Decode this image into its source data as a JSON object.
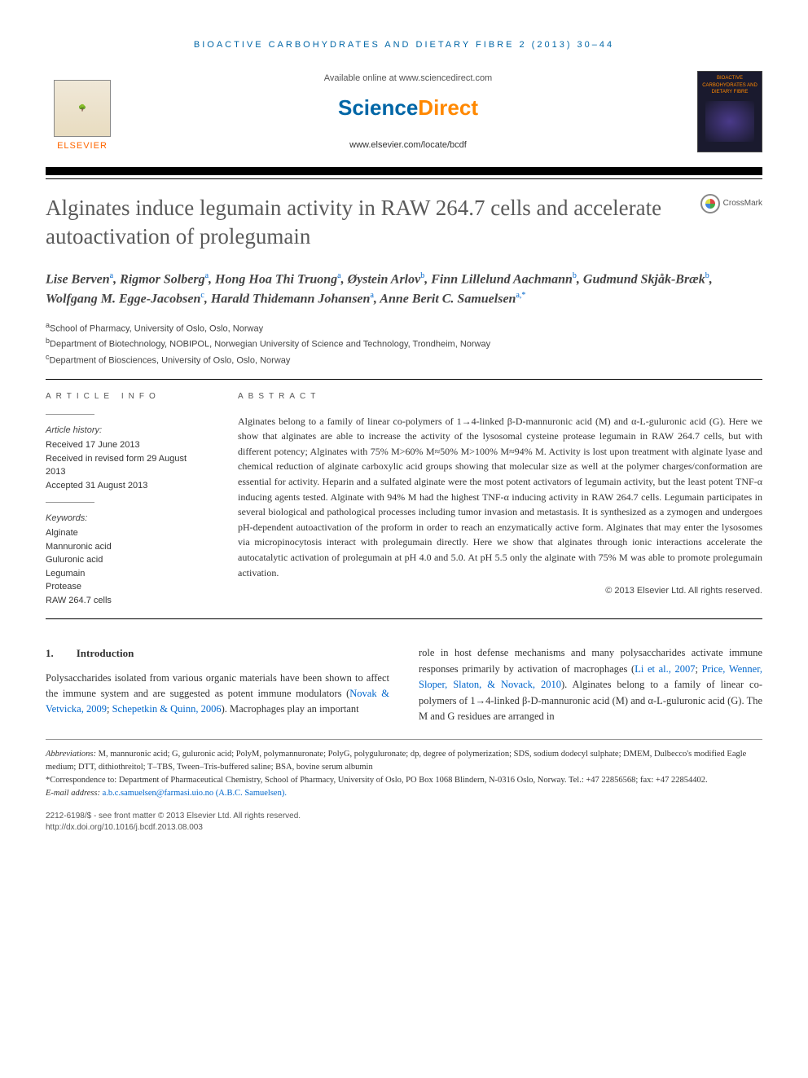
{
  "journal_header": "BIOACTIVE CARBOHYDRATES AND DIETARY FIBRE 2 (2013) 30–44",
  "available_online": "Available online at www.sciencedirect.com",
  "sciencedirect": {
    "science": "Science",
    "direct": "Direct"
  },
  "journal_url": "www.elsevier.com/locate/bcdf",
  "elsevier_label": "ELSEVIER",
  "journal_cover_text": "BIOACTIVE CARBOHYDRATES AND DIETARY FIBRE",
  "title": "Alginates induce legumain activity in RAW 264.7 cells and accelerate autoactivation of prolegumain",
  "crossmark_label": "CrossMark",
  "authors_html": "Lise Berven<sup class='aff-link'>a</sup>, Rigmor Solberg<sup class='aff-link'>a</sup>, Hong Hoa Thi Truong<sup class='aff-link'>a</sup>, Øystein Arlov<sup class='aff-link'>b</sup>, Finn Lillelund Aachmann<sup class='aff-link'>b</sup>, Gudmund Skjåk-Bræk<sup class='aff-link'>b</sup>, Wolfgang M. Egge-Jacobsen<sup class='aff-link'>c</sup>, Harald Thidemann Johansen<sup class='aff-link'>a</sup>, Anne Berit C. Samuelsen<sup class='aff-link'>a,*</sup>",
  "affiliations": {
    "a": "School of Pharmacy, University of Oslo, Oslo, Norway",
    "b": "Department of Biotechnology, NOBIPOL, Norwegian University of Science and Technology, Trondheim, Norway",
    "c": "Department of Biosciences, University of Oslo, Oslo, Norway"
  },
  "info_heading": "ARTICLE INFO",
  "abstract_heading": "ABSTRACT",
  "history_label": "Article history:",
  "history": {
    "received": "Received 17 June 2013",
    "revised": "Received in revised form 29 August 2013",
    "accepted": "Accepted 31 August 2013"
  },
  "keywords_label": "Keywords:",
  "keywords": [
    "Alginate",
    "Mannuronic acid",
    "Guluronic acid",
    "Legumain",
    "Protease",
    "RAW 264.7 cells"
  ],
  "abstract": "Alginates belong to a family of linear co-polymers of 1→4-linked β-D-mannuronic acid (M) and α-L-guluronic acid (G). Here we show that alginates are able to increase the activity of the lysosomal cysteine protease legumain in RAW 264.7 cells, but with different potency; Alginates with 75% M>60% M≈50% M>100% M≈94% M. Activity is lost upon treatment with alginate lyase and chemical reduction of alginate carboxylic acid groups showing that molecular size as well at the polymer charges/conformation are essential for activity. Heparin and a sulfated alginate were the most potent activators of legumain activity, but the least potent TNF-α inducing agents tested. Alginate with 94% M had the highest TNF-α inducing activity in RAW 264.7 cells. Legumain participates in several biological and pathological processes including tumor invasion and metastasis. It is synthesized as a zymogen and undergoes pH-dependent autoactivation of the proform in order to reach an enzymatically active form. Alginates that may enter the lysosomes via micropinocytosis interact with prolegumain directly. Here we show that alginates through ionic interactions accelerate the autocatalytic activation of prolegumain at pH 4.0 and 5.0. At pH 5.5 only the alginate with 75% M was able to promote prolegumain activation.",
  "copyright": "© 2013 Elsevier Ltd. All rights reserved.",
  "intro_heading_num": "1.",
  "intro_heading_text": "Introduction",
  "intro_col1": "Polysaccharides isolated from various organic materials have been shown to affect the immune system and are suggested as potent immune modulators (",
  "intro_ref1": "Novak & Vetvicka, 2009",
  "intro_ref2": "Schepetkin & Quinn, 2006",
  "intro_col1_end": "). Macrophages play an important",
  "intro_col2_start": "role in host defense mechanisms and many polysaccharides activate immune responses primarily by activation of macrophages (",
  "intro_ref3": "Li et al., 2007",
  "intro_ref4": "Price, Wenner, Sloper, Slaton, & Novack, 2010",
  "intro_col2_end": "). Alginates belong to a family of linear co-polymers of 1→4-linked β-D-mannuronic acid (M) and α-L-guluronic acid (G). The M and G residues are arranged in",
  "abbreviations_label": "Abbreviations:",
  "abbreviations": "M,  mannuronic acid; G,  guluronic acid; PolyM,  polymannuronate; PolyG,  polyguluronate; dp,  degree of polymerization; SDS,  sodium dodecyl sulphate; DMEM,  Dulbecco's modified Eagle medium; DTT,  dithiothreitol; T–TBS,  Tween–Tris-buffered saline; BSA,  bovine serum albumin",
  "correspondence_label": "*Correspondence to:",
  "correspondence": "Department of Pharmaceutical Chemistry, School of Pharmacy, University of Oslo, PO Box 1068 Blindern, N-0316 Oslo, Norway. Tel.: +47 22856568; fax: +47 22854402.",
  "email_label": "E-mail address:",
  "email": "a.b.c.samuelsen@farmasi.uio.no (A.B.C. Samuelsen).",
  "issn_line": "2212-6198/$ - see front matter © 2013 Elsevier Ltd. All rights reserved.",
  "doi_line": "http://dx.doi.org/10.1016/j.bcdf.2013.08.003",
  "colors": {
    "blue": "#0066a6",
    "orange": "#ff8800",
    "link": "#0066cc",
    "text": "#333333",
    "grey_title": "#5a5a5a"
  }
}
